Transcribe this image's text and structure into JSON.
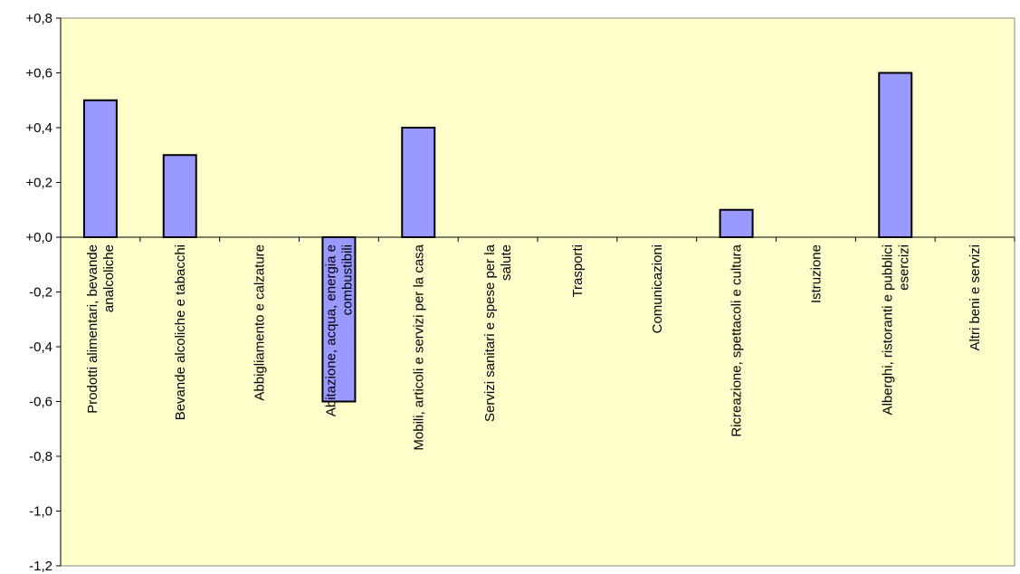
{
  "chart_data": {
    "type": "bar",
    "categories": [
      [
        "Prodotti alimentari, bevande",
        "analcoliche"
      ],
      [
        "Bevande alcoliche e tabacchi"
      ],
      [
        "Abbigliamento e calzature"
      ],
      [
        "Abitazione, acqua, energia e",
        "combustibili"
      ],
      [
        "Mobili, articoli e servizi per la casa"
      ],
      [
        "Servizi sanitari e spese per la",
        "salute"
      ],
      [
        "Trasporti"
      ],
      [
        "Comunicazioni"
      ],
      [
        "Ricreazione, spettacoli e cultura"
      ],
      [
        "Istruzione"
      ],
      [
        "Alberghi, ristoranti e pubblici",
        "esercizi"
      ],
      [
        "Altri beni e servizi"
      ]
    ],
    "values": [
      0.5,
      0.3,
      0.0,
      -0.6,
      0.4,
      0.0,
      0.0,
      0.0,
      0.1,
      0.0,
      0.6,
      0.0
    ],
    "ylim": [
      -1.2,
      0.8
    ],
    "yticks": [
      "+0,8",
      "+0,6",
      "+0,4",
      "+0,2",
      "+0,0",
      "-0,2",
      "-0,4",
      "-0,6",
      "-0,8",
      "-1,0",
      "-1,2"
    ],
    "ytick_values": [
      0.8,
      0.6,
      0.4,
      0.2,
      0.0,
      -0.2,
      -0.4,
      -0.6,
      -0.8,
      -1.0,
      -1.2
    ],
    "title": "",
    "xlabel": "",
    "ylabel": "",
    "colors": {
      "plot_background": "#FFFFCC",
      "bar_fill": "#9999FF",
      "bar_stroke": "#000000",
      "axis": "#000000"
    }
  }
}
